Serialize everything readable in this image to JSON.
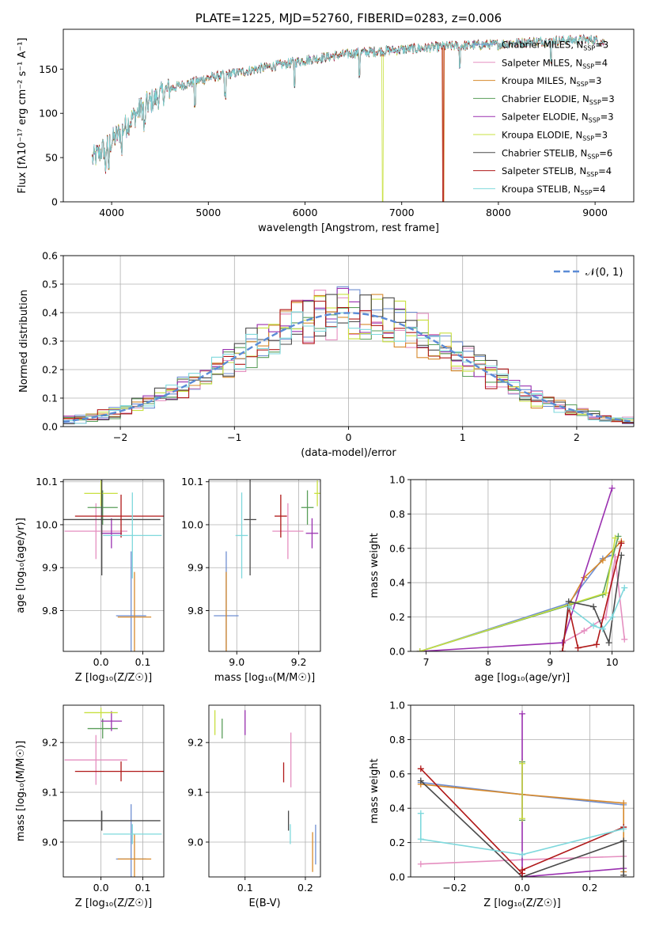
{
  "colors": {
    "Chabrier MILES": "#6f8fd2",
    "Salpeter MILES": "#e58fc0",
    "Kroupa MILES": "#d7892b",
    "Chabrier ELODIE": "#5a9e5a",
    "Salpeter ELODIE": "#9a30b0",
    "Kroupa ELODIE": "#c8e040",
    "Chabrier STELIB": "#4a4a4a",
    "Salpeter STELIB": "#b01818",
    "Kroupa STELIB": "#7ed8dc"
  },
  "chart_data": [
    {
      "id": "spectrum",
      "type": "line",
      "title": "PLATE=1225, MJD=52760, FIBERID=0283, z=0.006",
      "xlabel": "wavelength [Angstrom, rest frame]",
      "ylabel": "Flux [fλ10⁻¹⁷ erg cm⁻² s⁻¹ A⁻¹]",
      "xlim": [
        3500,
        9400
      ],
      "ylim": [
        0,
        195
      ],
      "xticks": [
        4000,
        5000,
        6000,
        7000,
        8000,
        9000
      ],
      "yticks": [
        0,
        50,
        100,
        150
      ],
      "legend_position": "top-right",
      "series": [
        {
          "name": "Chabrier MILES, N_SSP=3",
          "color_key": "Chabrier MILES"
        },
        {
          "name": "Salpeter MILES, N_SSP=4",
          "color_key": "Salpeter MILES"
        },
        {
          "name": "Kroupa MILES, N_SSP=3",
          "color_key": "Kroupa MILES"
        },
        {
          "name": "Chabrier ELODIE, N_SSP=3",
          "color_key": "Chabrier ELODIE"
        },
        {
          "name": "Salpeter ELODIE, N_SSP=3",
          "color_key": "Salpeter ELODIE"
        },
        {
          "name": "Kroupa ELODIE, N_SSP=3",
          "color_key": "Kroupa ELODIE"
        },
        {
          "name": "Chabrier STELIB, N_SSP=6",
          "color_key": "Chabrier STELIB"
        },
        {
          "name": "Salpeter STELIB, N_SSP=4",
          "color_key": "Salpeter STELIB"
        },
        {
          "name": "Kroupa STELIB, N_SSP=4",
          "color_key": "Kroupa STELIB"
        }
      ],
      "continuum": {
        "x": [
          3800,
          4000,
          4300,
          4600,
          5000,
          5500,
          6000,
          6500,
          7000,
          7500,
          8000,
          8500,
          9000,
          9100
        ],
        "y": [
          48,
          68,
          105,
          128,
          140,
          150,
          160,
          168,
          172,
          176,
          178,
          182,
          183,
          180
        ]
      },
      "drops": [
        {
          "color_key": "Kroupa ELODIE",
          "x": 6800
        },
        {
          "color_key": "Salpeter STELIB",
          "x": 7420
        },
        {
          "color_key": "Kroupa MILES",
          "x": 7430
        }
      ]
    },
    {
      "id": "residuals",
      "type": "histogram",
      "xlabel": "(data-model)/error",
      "ylabel": "Normed distribution",
      "xlim": [
        -2.5,
        2.5
      ],
      "ylim": [
        0,
        0.6
      ],
      "xticks": [
        -2,
        -1,
        0,
        1,
        2
      ],
      "xtick_labels": [
        "−2",
        "−1",
        "0",
        "1",
        "2"
      ],
      "yticks": [
        0.0,
        0.1,
        0.2,
        0.3,
        0.4,
        0.5,
        0.6
      ],
      "ytick_labels": [
        "0.0",
        "0.1",
        "0.2",
        "0.3",
        "0.4",
        "0.5",
        "0.6"
      ],
      "bin_width": 0.1,
      "reference": {
        "name": "N(0,1)",
        "label": "𝒩(0, 1)",
        "color": "#5b8bd6",
        "style": "dashed"
      },
      "legend_position": "top-right"
    },
    {
      "id": "age_vs_Z",
      "type": "errorbar",
      "xlabel": "Z [log₁₀(Z/Z☉)]",
      "ylabel": "age  [log₁₀(age/yr)]",
      "xlim": [
        -0.09,
        0.15
      ],
      "ylim": [
        9.705,
        10.105
      ],
      "xticks": [
        0.0,
        0.1
      ],
      "yticks": [
        9.8,
        9.9,
        10.0,
        10.1
      ],
      "points": [
        {
          "key": "Chabrier MILES",
          "x": 0.072,
          "y": 9.788,
          "xerr": 0.036,
          "yerr": 0.15
        },
        {
          "key": "Salpeter MILES",
          "x": -0.012,
          "y": 9.985,
          "xerr": 0.075,
          "yerr": 0.065
        },
        {
          "key": "Kroupa MILES",
          "x": 0.08,
          "y": 9.785,
          "xerr": 0.04,
          "yerr": 0.105
        },
        {
          "key": "Chabrier ELODIE",
          "x": 0.004,
          "y": 10.04,
          "xerr": 0.036,
          "yerr": 0.04
        },
        {
          "key": "Salpeter ELODIE",
          "x": 0.025,
          "y": 9.98,
          "xerr": 0.025,
          "yerr": 0.035
        },
        {
          "key": "Kroupa ELODIE",
          "x": 0.0,
          "y": 10.073,
          "xerr": 0.04,
          "yerr": 0.03
        },
        {
          "key": "Chabrier STELIB",
          "x": 0.002,
          "y": 10.012,
          "xerr": 0.14,
          "yerr": 0.13
        },
        {
          "key": "Salpeter STELIB",
          "x": 0.048,
          "y": 10.02,
          "xerr": 0.11,
          "yerr": 0.05
        },
        {
          "key": "Kroupa STELIB",
          "x": 0.075,
          "y": 9.975,
          "xerr": 0.07,
          "yerr": 0.1
        }
      ]
    },
    {
      "id": "age_vs_mass",
      "type": "errorbar",
      "xlabel": "mass [log₁₀(M/M☉)]",
      "ylabel": "",
      "xlim": [
        8.91,
        9.27
      ],
      "ylim": [
        9.705,
        10.105
      ],
      "xticks": [
        9.0,
        9.2
      ],
      "yticks": [
        9.8,
        9.9,
        10.0,
        10.1
      ],
      "points": [
        {
          "key": "Chabrier MILES",
          "x": 8.966,
          "y": 9.788,
          "xerr": 0.04,
          "yerr": 0.15
        },
        {
          "key": "Salpeter MILES",
          "x": 9.165,
          "y": 9.985,
          "xerr": 0.05,
          "yerr": 0.065
        },
        {
          "key": "Kroupa MILES",
          "x": 8.966,
          "y": 9.785,
          "xerr": 0.0,
          "yerr": 0.105
        },
        {
          "key": "Chabrier ELODIE",
          "x": 9.228,
          "y": 10.04,
          "xerr": 0.02,
          "yerr": 0.04
        },
        {
          "key": "Salpeter ELODIE",
          "x": 9.243,
          "y": 9.98,
          "xerr": 0.02,
          "yerr": 0.035
        },
        {
          "key": "Kroupa ELODIE",
          "x": 9.26,
          "y": 10.073,
          "xerr": 0.01,
          "yerr": 0.03
        },
        {
          "key": "Chabrier STELIB",
          "x": 9.043,
          "y": 10.012,
          "xerr": 0.02,
          "yerr": 0.13
        },
        {
          "key": "Salpeter STELIB",
          "x": 9.142,
          "y": 10.02,
          "xerr": 0.02,
          "yerr": 0.05
        },
        {
          "key": "Kroupa STELIB",
          "x": 9.016,
          "y": 9.975,
          "xerr": 0.02,
          "yerr": 0.1
        }
      ]
    },
    {
      "id": "mass_weight_vs_age",
      "type": "line",
      "xlabel": "age  [log₁₀(age/yr)]",
      "ylabel": "mass weight",
      "xlim": [
        6.75,
        10.35
      ],
      "ylim": [
        0.0,
        1.0
      ],
      "xticks": [
        7,
        8,
        9,
        10
      ],
      "yticks": [
        0.0,
        0.2,
        0.4,
        0.6,
        0.8,
        1.0
      ],
      "series": [
        {
          "key": "Chabrier MILES",
          "x": [
            6.9,
            9.3,
            9.85,
            10.0
          ],
          "y": [
            0.0,
            0.28,
            0.54,
            0.56
          ]
        },
        {
          "key": "Salpeter MILES",
          "x": [
            9.2,
            9.55,
            9.9,
            10.05,
            10.2
          ],
          "y": [
            0.05,
            0.12,
            0.2,
            0.55,
            0.07
          ]
        },
        {
          "key": "Kroupa MILES",
          "x": [
            9.3,
            9.55,
            9.85,
            10.15
          ],
          "y": [
            0.27,
            0.43,
            0.53,
            0.64
          ]
        },
        {
          "key": "Chabrier ELODIE",
          "x": [
            6.9,
            9.85,
            10.1
          ],
          "y": [
            0.0,
            0.33,
            0.67
          ]
        },
        {
          "key": "Salpeter ELODIE",
          "x": [
            6.9,
            9.2,
            10.0
          ],
          "y": [
            0.0,
            0.05,
            0.95
          ]
        },
        {
          "key": "Kroupa ELODIE",
          "x": [
            6.9,
            9.9,
            10.05
          ],
          "y": [
            0.0,
            0.34,
            0.66
          ]
        },
        {
          "key": "Chabrier STELIB",
          "x": [
            9.2,
            9.3,
            9.7,
            9.95,
            10.15
          ],
          "y": [
            0.0,
            0.29,
            0.26,
            0.05,
            0.56
          ]
        },
        {
          "key": "Salpeter STELIB",
          "x": [
            9.2,
            9.3,
            9.45,
            9.75,
            10.15
          ],
          "y": [
            0.0,
            0.26,
            0.02,
            0.04,
            0.63
          ]
        },
        {
          "key": "Kroupa STELIB",
          "x": [
            9.3,
            9.7,
            9.85,
            10.0,
            10.2
          ],
          "y": [
            0.26,
            0.15,
            0.13,
            0.2,
            0.37
          ]
        }
      ]
    },
    {
      "id": "mass_vs_Z",
      "type": "errorbar",
      "xlabel": "Z [log₁₀(Z/Z☉)]",
      "ylabel": "mass [log₁₀(M/M☉)]",
      "xlim": [
        -0.09,
        0.15
      ],
      "ylim": [
        8.93,
        9.275
      ],
      "xticks": [
        0.0,
        0.1
      ],
      "yticks": [
        9.0,
        9.1,
        9.2
      ],
      "points": [
        {
          "key": "Chabrier MILES",
          "x": 0.072,
          "y": 8.966,
          "xerr": 0.036,
          "yerr": 0.11
        },
        {
          "key": "Salpeter MILES",
          "x": -0.012,
          "y": 9.165,
          "xerr": 0.075,
          "yerr": 0.05
        },
        {
          "key": "Kroupa MILES",
          "x": 0.08,
          "y": 8.966,
          "xerr": 0.04,
          "yerr": 0.05
        },
        {
          "key": "Chabrier ELODIE",
          "x": 0.004,
          "y": 9.228,
          "xerr": 0.036,
          "yerr": 0.02
        },
        {
          "key": "Salpeter ELODIE",
          "x": 0.025,
          "y": 9.243,
          "xerr": 0.025,
          "yerr": 0.02
        },
        {
          "key": "Kroupa ELODIE",
          "x": 0.0,
          "y": 9.26,
          "xerr": 0.04,
          "yerr": 0.01
        },
        {
          "key": "Chabrier STELIB",
          "x": 0.002,
          "y": 9.043,
          "xerr": 0.14,
          "yerr": 0.02
        },
        {
          "key": "Salpeter STELIB",
          "x": 0.048,
          "y": 9.142,
          "xerr": 0.11,
          "yerr": 0.02
        },
        {
          "key": "Kroupa STELIB",
          "x": 0.075,
          "y": 9.016,
          "xerr": 0.07,
          "yerr": 0.02
        }
      ]
    },
    {
      "id": "mass_vs_ebv",
      "type": "errorbar",
      "xlabel": "E(B-V)",
      "ylabel": "",
      "xlim": [
        0.04,
        0.225
      ],
      "ylim": [
        8.93,
        9.275
      ],
      "xticks": [
        0.1,
        0.2
      ],
      "yticks": [
        9.0,
        9.1,
        9.2
      ],
      "points": [
        {
          "key": "Chabrier MILES",
          "x": 0.217,
          "y": 8.995,
          "xerr": 0,
          "yerr": 0.04
        },
        {
          "key": "Salpeter MILES",
          "x": 0.176,
          "y": 9.165,
          "xerr": 0,
          "yerr": 0.055
        },
        {
          "key": "Kroupa MILES",
          "x": 0.212,
          "y": 8.98,
          "xerr": 0,
          "yerr": 0.04
        },
        {
          "key": "Chabrier ELODIE",
          "x": 0.062,
          "y": 9.228,
          "xerr": 0,
          "yerr": 0.02
        },
        {
          "key": "Salpeter ELODIE",
          "x": 0.1,
          "y": 9.24,
          "xerr": 0,
          "yerr": 0.025
        },
        {
          "key": "Kroupa ELODIE",
          "x": 0.05,
          "y": 9.24,
          "xerr": 0,
          "yerr": 0.025
        },
        {
          "key": "Chabrier STELIB",
          "x": 0.172,
          "y": 9.043,
          "xerr": 0,
          "yerr": 0.02
        },
        {
          "key": "Salpeter STELIB",
          "x": 0.164,
          "y": 9.14,
          "xerr": 0,
          "yerr": 0.02
        },
        {
          "key": "Kroupa STELIB",
          "x": 0.175,
          "y": 9.016,
          "xerr": 0,
          "yerr": 0.02
        }
      ]
    },
    {
      "id": "mass_weight_vs_Z",
      "type": "line",
      "xlabel": "Z [log₁₀(Z/Z☉)]",
      "ylabel": "mass weight",
      "xlim": [
        -0.33,
        0.33
      ],
      "ylim": [
        0.0,
        1.0
      ],
      "xticks": [
        -0.2,
        0.0,
        0.2
      ],
      "xtick_labels": [
        "−0.2",
        "0.0",
        "0.2"
      ],
      "yticks": [
        0.0,
        0.2,
        0.4,
        0.6,
        0.8,
        1.0
      ],
      "series": [
        {
          "key": "Chabrier MILES",
          "x": [
            -0.3,
            0.0,
            0.3
          ],
          "y": [
            0.55,
            0.48,
            0.42
          ]
        },
        {
          "key": "Salpeter MILES",
          "x": [
            -0.3,
            0.0,
            0.3
          ],
          "y": [
            0.075,
            0.1,
            0.12
          ]
        },
        {
          "key": "Kroupa MILES",
          "x": [
            -0.3,
            0.0,
            0.3,
            0.3
          ],
          "y": [
            0.54,
            0.48,
            0.43,
            0.03
          ]
        },
        {
          "key": "Chabrier ELODIE",
          "x": [
            0.0,
            0.0
          ],
          "y": [
            0.33,
            0.67
          ]
        },
        {
          "key": "Salpeter ELODIE",
          "x": [
            0.0,
            0.0,
            0.3
          ],
          "y": [
            0.95,
            0.0,
            0.05
          ]
        },
        {
          "key": "Kroupa ELODIE",
          "x": [
            0.0,
            0.0
          ],
          "y": [
            0.34,
            0.66
          ]
        },
        {
          "key": "Chabrier STELIB",
          "x": [
            -0.3,
            0.0,
            0.3,
            0.3
          ],
          "y": [
            0.56,
            0.0,
            0.21,
            0.01
          ]
        },
        {
          "key": "Salpeter STELIB",
          "x": [
            -0.3,
            0.0,
            0.0,
            0.3
          ],
          "y": [
            0.63,
            0.02,
            0.04,
            0.29
          ]
        },
        {
          "key": "Kroupa STELIB",
          "x": [
            -0.3,
            -0.3,
            0.0,
            0.3
          ],
          "y": [
            0.37,
            0.22,
            0.13,
            0.28
          ]
        }
      ]
    }
  ]
}
